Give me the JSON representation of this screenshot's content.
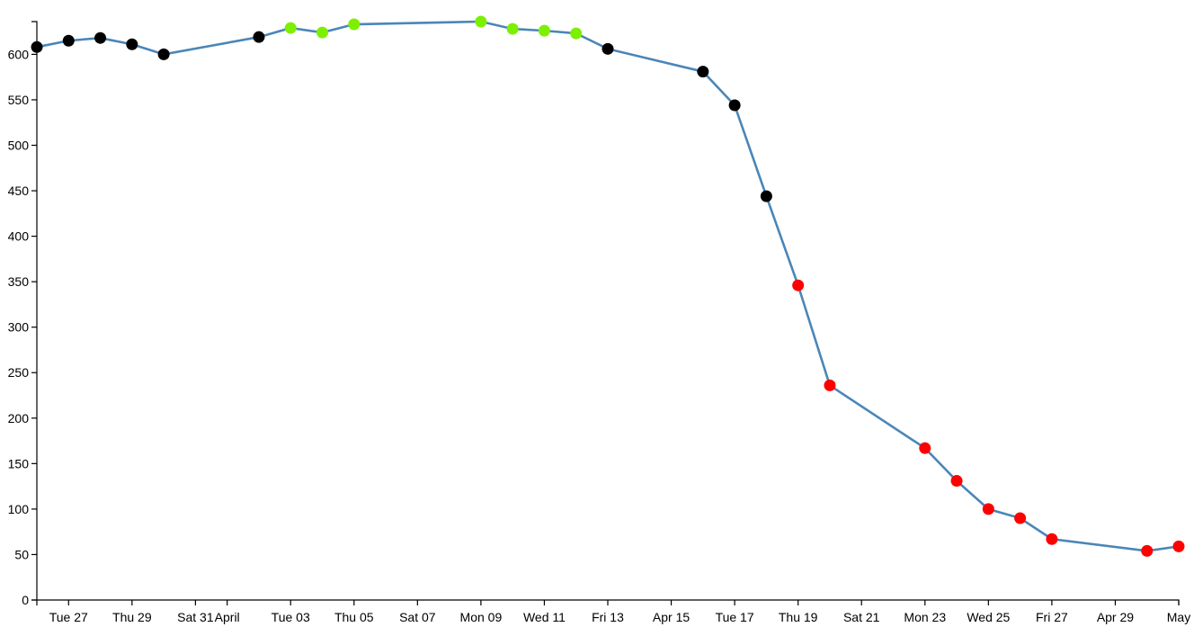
{
  "chart_data": {
    "type": "line",
    "title": "",
    "xlabel": "",
    "ylabel": "",
    "ylim": [
      0,
      636
    ],
    "xlim": [
      "2018-03-26",
      "2018-05-01"
    ],
    "y_ticks": [
      0,
      50,
      100,
      150,
      200,
      250,
      300,
      350,
      400,
      450,
      500,
      550,
      600
    ],
    "x_ticks": [
      {
        "date": "2018-03-27",
        "label": "Tue 27"
      },
      {
        "date": "2018-03-29",
        "label": "Thu 29"
      },
      {
        "date": "2018-03-31",
        "label": "Sat 31"
      },
      {
        "date": "2018-04-01",
        "label": "April"
      },
      {
        "date": "2018-04-03",
        "label": "Tue 03"
      },
      {
        "date": "2018-04-05",
        "label": "Thu 05"
      },
      {
        "date": "2018-04-07",
        "label": "Sat 07"
      },
      {
        "date": "2018-04-09",
        "label": "Mon 09"
      },
      {
        "date": "2018-04-11",
        "label": "Wed 11"
      },
      {
        "date": "2018-04-13",
        "label": "Fri 13"
      },
      {
        "date": "2018-04-15",
        "label": "Apr 15"
      },
      {
        "date": "2018-04-17",
        "label": "Tue 17"
      },
      {
        "date": "2018-04-19",
        "label": "Thu 19"
      },
      {
        "date": "2018-04-21",
        "label": "Sat 21"
      },
      {
        "date": "2018-04-23",
        "label": "Mon 23"
      },
      {
        "date": "2018-04-25",
        "label": "Wed 25"
      },
      {
        "date": "2018-04-27",
        "label": "Fri 27"
      },
      {
        "date": "2018-04-29",
        "label": "Apr 29"
      },
      {
        "date": "2018-05-01",
        "label": "May"
      }
    ],
    "grid": false,
    "line_color": "#4a86b8",
    "point_colors": {
      "black": "#000000",
      "green": "#7cf000",
      "red": "#ff0000"
    },
    "series": [
      {
        "points": [
          {
            "x": "2018-03-26",
            "y": 608,
            "color": "black"
          },
          {
            "x": "2018-03-27",
            "y": 615,
            "color": "black"
          },
          {
            "x": "2018-03-28",
            "y": 618,
            "color": "black"
          },
          {
            "x": "2018-03-29",
            "y": 611,
            "color": "black"
          },
          {
            "x": "2018-03-30",
            "y": 600,
            "color": "black"
          },
          {
            "x": "2018-04-02",
            "y": 619,
            "color": "black"
          },
          {
            "x": "2018-04-03",
            "y": 629,
            "color": "green"
          },
          {
            "x": "2018-04-04",
            "y": 624,
            "color": "green"
          },
          {
            "x": "2018-04-05",
            "y": 633,
            "color": "green"
          },
          {
            "x": "2018-04-09",
            "y": 636,
            "color": "green"
          },
          {
            "x": "2018-04-10",
            "y": 628,
            "color": "green"
          },
          {
            "x": "2018-04-11",
            "y": 626,
            "color": "green"
          },
          {
            "x": "2018-04-12",
            "y": 623,
            "color": "green"
          },
          {
            "x": "2018-04-13",
            "y": 606,
            "color": "black"
          },
          {
            "x": "2018-04-16",
            "y": 581,
            "color": "black"
          },
          {
            "x": "2018-04-17",
            "y": 544,
            "color": "black"
          },
          {
            "x": "2018-04-18",
            "y": 444,
            "color": "black"
          },
          {
            "x": "2018-04-19",
            "y": 346,
            "color": "red"
          },
          {
            "x": "2018-04-20",
            "y": 236,
            "color": "red"
          },
          {
            "x": "2018-04-23",
            "y": 167,
            "color": "red"
          },
          {
            "x": "2018-04-24",
            "y": 131,
            "color": "red"
          },
          {
            "x": "2018-04-25",
            "y": 100,
            "color": "red"
          },
          {
            "x": "2018-04-26",
            "y": 90,
            "color": "red"
          },
          {
            "x": "2018-04-27",
            "y": 67,
            "color": "red"
          },
          {
            "x": "2018-04-30",
            "y": 54,
            "color": "red"
          },
          {
            "x": "2018-05-01",
            "y": 59,
            "color": "red"
          }
        ]
      }
    ]
  }
}
